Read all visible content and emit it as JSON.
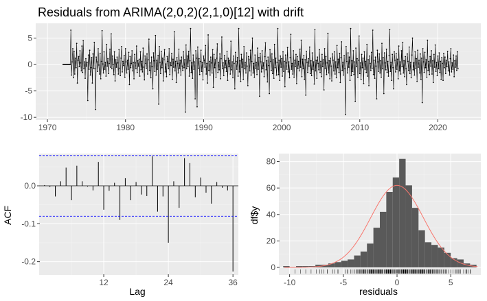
{
  "chart_data": [
    {
      "type": "line",
      "title": "Residuals from ARIMA(2,0,2)(2,1,0)[12] with drift",
      "xlabel": "",
      "ylabel": "",
      "xlim": [
        1968.5,
        2025.5
      ],
      "ylim": [
        -10.5,
        7.8
      ],
      "x_ticks": [
        "1970",
        "1980",
        "1990",
        "2000",
        "2010",
        "2020"
      ],
      "x_tick_values": [
        1970,
        1980,
        1990,
        2000,
        2010,
        2020
      ],
      "y_ticks": [
        "5",
        "0",
        "-5",
        "-10"
      ],
      "y_tick_values": [
        5,
        0,
        -5,
        -10
      ],
      "series": [
        {
          "x_start": 1972.0,
          "x_step": 0.0833333,
          "values": [
            0,
            0,
            0,
            0,
            0,
            0,
            0,
            0,
            0,
            0,
            0,
            0,
            6.5,
            -2.0,
            0.5,
            3.0,
            -2.5,
            2.5,
            -1.8,
            1.2,
            -0.6,
            4.0,
            -3.5,
            0.8,
            1.5,
            -0.4,
            2.6,
            0.3,
            -1.2,
            3.5,
            -1.5,
            4.5,
            -0.8,
            0.5,
            -2.6,
            1.1,
            -0.3,
            0.4,
            -6.8,
            1.8,
            -0.9,
            2.7,
            -2.0,
            -0.6,
            1.3,
            -3.5,
            2.0,
            -0.7,
            4.2,
            -0.8,
            -8.5,
            1.4,
            0.5,
            -1.3,
            3.0,
            -0.1,
            -1.8,
            2.1,
            -2.7,
            0.6,
            6.4,
            0.1,
            -1.6,
            2.4,
            -0.9,
            0.4,
            -2.2,
            3.8,
            -0.3,
            1.1,
            -1.7,
            0.2,
            2.9,
            -0.5,
            5.8,
            -0.8,
            1.6,
            0.0,
            -1.9,
            2.4,
            -3.1,
            0.9,
            -0.5,
            1.4,
            0.3,
            -1.8,
            2.8,
            -0.7,
            -2.1,
            1.2,
            3.4,
            -1.4,
            0.6,
            -0.2,
            1.7,
            -2.4,
            3.0,
            0.5,
            -1.6,
            0.8,
            -0.9,
            2.3,
            -3.8,
            1.5,
            -0.6,
            0.2,
            2.6,
            -1.2,
            0.4,
            -2.7,
            1.9,
            0.3,
            -0.8,
            3.5,
            -1.5,
            0.7,
            -0.3,
            1.0,
            -2.2,
            2.4,
            -1.0,
            0.6,
            -1.4,
            3.1,
            -0.5,
            -2.9,
            1.6,
            0.2,
            -0.7,
            2.0,
            -1.8,
            0.9,
            4.8,
            -1.1,
            0.3,
            -2.5,
            1.4,
            -0.4,
            -4.6,
            2.2,
            0.7,
            -1.3,
            5.5,
            -2.0,
            0.8,
            -0.9,
            1.7,
            -7.5,
            3.4,
            0.4,
            -1.7,
            2.5,
            -0.6,
            1.2,
            -3.1,
            0.9,
            2.8,
            -1.4,
            0.1,
            -2.3,
            1.5,
            0.6,
            -0.8,
            3.0,
            -1.9,
            0.4,
            -0.2,
            2.1,
            -2.8,
            1.0,
            -0.5,
            6.2,
            -1.2,
            0.6,
            -3.4,
            1.3,
            0.2,
            -1.6,
            2.9,
            -0.7,
            0.8,
            -2.0,
            1.4,
            -0.3,
            -1.1,
            2.4,
            -0.6,
            0.9,
            -9.0,
            3.7,
            -0.8,
            1.6,
            -0.4,
            2.5,
            -2.2,
            0.7,
            6.8,
            -1.5,
            0.3,
            -2.6,
            1.8,
            -0.9,
            0.5,
            -6.5,
            2.6,
            1.2,
            -8.0,
            3.3,
            -0.7,
            1.1,
            -1.9,
            0.6,
            2.7,
            -1.3,
            0.4,
            -2.9,
            1.6,
            0.8,
            -0.5,
            3.6,
            -1.8,
            0.2,
            -3.5,
            5.6,
            -1.1,
            0.6,
            -2.0,
            1.4,
            0.3,
            -1.6,
            2.8,
            -4.3,
            1.9,
            -0.6,
            0.9,
            -2.4,
            1.2,
            3.9,
            -1.5,
            0.4,
            -1.0,
            2.0,
            -2.7,
            1.1,
            5.2,
            -0.8,
            0.3,
            -2.1,
            1.7,
            -0.6,
            0.7,
            -1.3,
            2.5,
            -3.0,
            1.2,
            -0.4,
            0.8,
            -1.8,
            4.4,
            -1.0,
            0.5,
            -2.5,
            1.6,
            0.2,
            -4.6,
            2.3,
            0.6,
            -0.9,
            1.3,
            -2.2,
            6.8,
            -1.4,
            0.7,
            -3.2,
            1.9,
            -0.5,
            1.0,
            -2.8,
            3.4,
            -0.8,
            0.4,
            -1.6,
            2.2,
            -0.3,
            -4.0,
            1.5,
            0.9,
            -1.2,
            2.7,
            -2.0,
            0.6,
            5.0,
            -1.6,
            0.2,
            -2.4,
            1.8,
            -0.7,
            0.4,
            -1.9,
            3.1,
            -0.9,
            1.3,
            -6.0,
            2.1,
            0.5,
            -1.4,
            2.6,
            -0.8,
            0.3,
            -2.3,
            1.5,
            4.1,
            -1.0,
            0.7,
            -3.3,
            1.4,
            -0.2,
            -5.5,
            2.8,
            0.6,
            -1.1,
            2.0,
            -1.7,
            0.9,
            -2.6,
            3.8,
            -0.6,
            1.2,
            -2.0,
            0.4,
            6.8,
            -1.9,
            0.8,
            -3.0,
            1.6,
            -0.5,
            1.1,
            -2.2,
            2.4,
            -1.3,
            0.6,
            -4.2,
            1.8,
            0.3,
            -0.9,
            3.2,
            -1.4,
            0.5,
            -2.5,
            1.3,
            5.7,
            -0.9,
            0.2,
            -1.8,
            2.6,
            -2.4,
            0.8,
            -0.4,
            1.9,
            -3.6,
            1.5,
            -0.7,
            0.6,
            -1.2,
            2.9,
            -0.5,
            4.6,
            -2.3,
            1.0,
            -0.8,
            1.7,
            -2.8,
            0.9,
            -5.8,
            2.5,
            0.4,
            -1.5,
            1.1,
            -0.3,
            3.3,
            -1.7,
            0.7,
            -2.1,
            2.2,
            -0.9,
            0.5,
            -3.7,
            6.6,
            -1.2,
            0.8,
            -2.6,
            1.4,
            0.2,
            -1.0,
            2.8,
            -1.5,
            0.6,
            -2.3,
            1.9,
            -0.4,
            0.9,
            -4.8,
            3.0,
            -0.7,
            1.5,
            -1.9,
            0.3,
            5.9,
            -1.6,
            0.7,
            -2.7,
            1.2,
            -0.3,
            -3.1,
            2.0,
            0.8,
            -1.2,
            2.4,
            -1.8,
            0.5,
            -2.5,
            3.6,
            -0.6,
            1.0,
            -1.5,
            2.1,
            -3.4,
            1.3,
            4.3,
            -1.1,
            0.4,
            -2.0,
            1.7,
            -0.8,
            -9.5,
            3.4,
            0.6,
            -1.6,
            2.2,
            -0.5,
            1.4,
            -3.0,
            6.8,
            -2.1,
            0.7,
            -1.3,
            2.6,
            -1.9,
            0.5,
            -7.0,
            3.1,
            -0.4,
            1.1,
            -2.4,
            0.8,
            5.4,
            -1.7,
            0.3,
            -2.8,
            1.9,
            -0.6,
            1.2,
            -3.6,
            2.4,
            -0.9,
            0.6,
            -1.5,
            3.8,
            -2.2,
            0.9,
            -4.0,
            1.6,
            0.2,
            -1.1,
            2.3,
            -0.7,
            6.5,
            -1.9,
            0.8,
            -2.6,
            1.4,
            -0.3,
            -6.5,
            2.7,
            0.5,
            -1.3,
            2.0,
            -1.6,
            0.7,
            -2.4,
            4.0,
            -0.8,
            1.3,
            -5.5,
            2.2,
            0.3,
            -1.0,
            2.9,
            -1.5,
            0.6,
            -2.2,
            1.7,
            6.6,
            -1.3,
            0.4,
            -3.0,
            1.9,
            -0.6,
            -4.6,
            2.4,
            0.8,
            -1.4,
            2.1,
            -0.9,
            1.0,
            -2.7,
            3.5,
            -1.2,
            0.5,
            -1.8,
            2.6,
            -0.4,
            4.2,
            -1.6,
            0.7,
            -2.3,
            1.5,
            -0.8,
            -3.8,
            2.0,
            0.6,
            -1.1,
            3.3,
            -1.7,
            0.4,
            -2.5,
            1.8,
            5.0,
            -1.0,
            0.3,
            -2.0,
            2.4,
            -0.7,
            1.1,
            -3.2,
            2.7,
            -0.5,
            0.8,
            -1.6,
            2.0,
            -2.8,
            1.2,
            -7.2,
            3.0,
            0.5,
            -1.5,
            2.3,
            -0.6,
            0.9,
            -2.4,
            4.6,
            -1.1,
            0.6,
            -1.9,
            1.5,
            -0.3,
            2.6,
            -1.8,
            0.7,
            -3.4,
            1.9,
            -0.5,
            3.7,
            -1.3,
            0.4,
            -2.1,
            1.6,
            -0.8,
            2.2,
            -1.5,
            0.6,
            -2.8,
            1.3,
            0.2,
            -3.0,
            2.1,
            -0.6,
            1.4,
            -1.7,
            0.8,
            -0.4,
            2.5,
            -1.2,
            0.5,
            -2.0,
            1.1,
            3.0,
            -1.4,
            0.3,
            -0.9,
            1.8,
            -2.3,
            0.7,
            -0.5,
            1.6,
            -1.1,
            2.4,
            -0.8
          ]
        }
      ]
    },
    {
      "type": "bar",
      "title": "",
      "xlabel": "Lag",
      "ylabel": "ACF",
      "xlim": [
        0,
        37
      ],
      "ylim": [
        -0.235,
        0.085
      ],
      "x_ticks": [
        "12",
        "24",
        "36"
      ],
      "x_tick_values": [
        12,
        24,
        36
      ],
      "y_ticks": [
        "0.0",
        "-0.1",
        "-0.2"
      ],
      "y_tick_values": [
        0.0,
        -0.1,
        -0.2
      ],
      "confidence_limits": [
        0.08,
        -0.08
      ],
      "lags": [
        1,
        2,
        3,
        4,
        5,
        6,
        7,
        8,
        9,
        10,
        11,
        12,
        13,
        14,
        15,
        16,
        17,
        18,
        19,
        20,
        21,
        22,
        23,
        24,
        25,
        26,
        27,
        28,
        29,
        30,
        31,
        32,
        33,
        34,
        35,
        36
      ],
      "values": [
        0.002,
        -0.003,
        -0.028,
        0.012,
        0.048,
        -0.038,
        0.053,
        0.012,
        -0.002,
        -0.012,
        0.063,
        -0.063,
        -0.013,
        0.008,
        -0.09,
        0.02,
        -0.038,
        0.01,
        -0.023,
        -0.027,
        0.078,
        -0.068,
        -0.028,
        -0.15,
        0.012,
        -0.058,
        0.073,
        0.06,
        -0.03,
        0.022,
        -0.018,
        -0.047,
        0.01,
        -0.005,
        -0.012,
        -0.226
      ]
    },
    {
      "type": "histogram",
      "title": "",
      "xlabel": "residuals",
      "ylabel": "df$y",
      "xlim": [
        -11,
        7.8
      ],
      "ylim": [
        0,
        86
      ],
      "x_ticks": [
        "-10",
        "-5",
        "0",
        "5"
      ],
      "x_tick_values": [
        -10,
        -5,
        0,
        5
      ],
      "y_ticks": [
        "0",
        "20",
        "40",
        "60",
        "80"
      ],
      "y_tick_values": [
        0,
        20,
        40,
        60,
        80
      ],
      "bins": [
        -10.3,
        -9.7,
        -9.1,
        -8.5,
        -7.9,
        -7.3,
        -6.7,
        -6.1,
        -5.5,
        -4.9,
        -4.3,
        -3.7,
        -3.1,
        -2.5,
        -1.9,
        -1.3,
        -0.7,
        -0.1,
        0.5,
        1.1,
        1.7,
        2.3,
        2.9,
        3.5,
        4.1,
        4.7,
        5.3,
        5.9,
        6.5,
        7.1
      ],
      "counts": [
        1,
        0,
        1,
        1,
        1,
        2,
        2,
        3,
        4,
        5,
        6,
        9,
        12,
        18,
        30,
        42,
        57,
        68,
        82,
        62,
        45,
        28,
        19,
        17,
        15,
        11,
        7,
        6,
        3,
        2
      ],
      "normal_curve": {
        "mean": 0,
        "sd": 2.45,
        "peak": 62
      },
      "rug": true
    }
  ]
}
